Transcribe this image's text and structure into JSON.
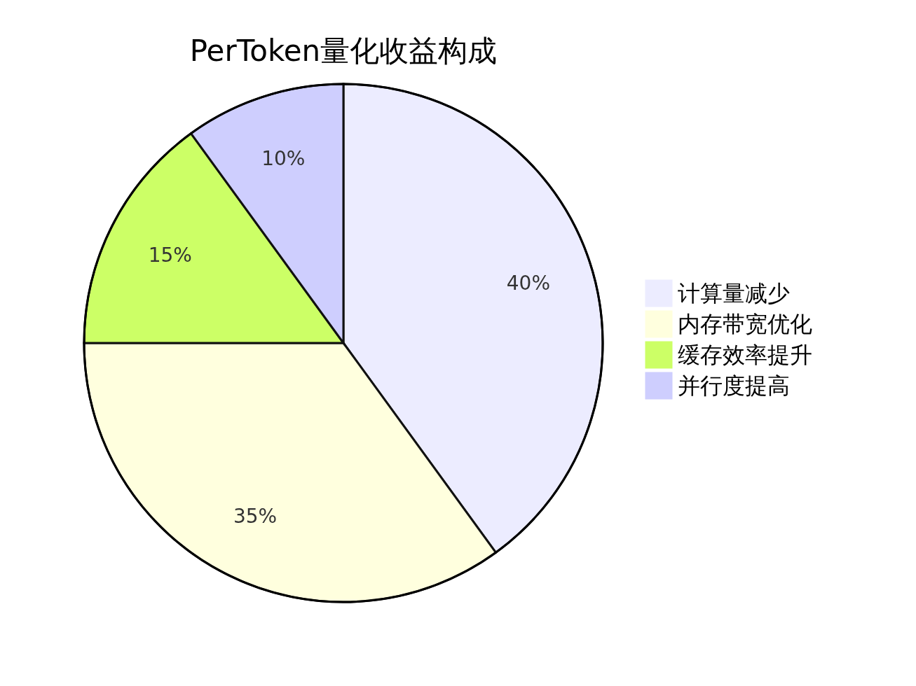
{
  "chart_data": {
    "type": "pie",
    "title": "PerToken量化收益构成",
    "categories": [
      "计算量减少",
      "内存带宽优化",
      "缓存效率提升",
      "并行度提高"
    ],
    "values": [
      40,
      35,
      15,
      10
    ],
    "colors": [
      "#ececff",
      "#ffffde",
      "#ccff66",
      "#cecefe"
    ],
    "value_labels": [
      "40%",
      "35%",
      "15%",
      "10%"
    ],
    "legend": "right"
  }
}
